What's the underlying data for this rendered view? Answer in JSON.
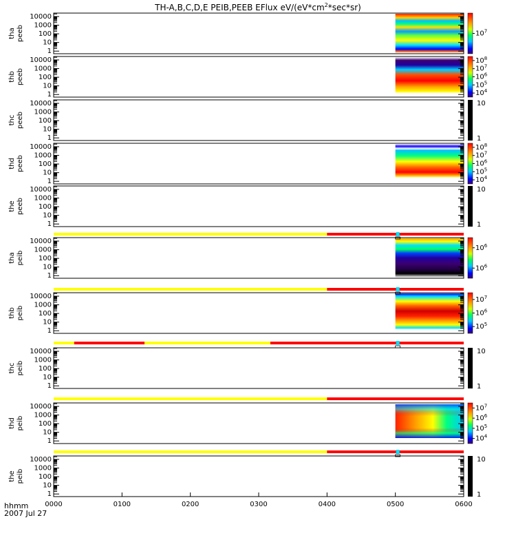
{
  "title_main": "TH-A,B,C,D,E PEIB,PEEB EFlux eV/(eV*cm",
  "title_sup": "2",
  "title_tail": "*sec*sr)",
  "time_label": "hhmm",
  "date_label": "2007 Jul 27",
  "chart_data": {
    "type": "heatmap",
    "x_ticks": [
      "0000",
      "0100",
      "0200",
      "0300",
      "0400",
      "0500",
      "0600"
    ],
    "xlim_hours": [
      0,
      6
    ],
    "data_start_hour": 5.0,
    "y_scale": "log",
    "ylim": [
      0.5,
      25000
    ],
    "panels": [
      {
        "probe": "thа",
        "quantity": "peeb",
        "has_data": true,
        "y_ticks": [
          "10000",
          "1000",
          "100",
          "10",
          "1"
        ],
        "cb_ticks": [
          "10",
          "7"
        ],
        "colormap_kind": "bands",
        "cb_exp_pos": [
          0.5
        ]
      },
      {
        "probe": "thb",
        "quantity": "peeb",
        "has_data": true,
        "y_ticks": [
          "10000",
          "1000",
          "100",
          "10",
          "1"
        ],
        "cb_ticks": [
          [
            "10",
            "8"
          ],
          [
            "10",
            "7"
          ],
          [
            "10",
            "6"
          ],
          [
            "10",
            "5"
          ],
          [
            "10",
            "4"
          ]
        ],
        "colormap_kind": "redcore"
      },
      {
        "probe": "thc",
        "quantity": "peeb",
        "has_data": false,
        "y_ticks": [
          "10000",
          "1000",
          "100",
          "10",
          "1"
        ],
        "cb_plain": [
          "10",
          "1"
        ]
      },
      {
        "probe": "thd",
        "quantity": "peeb",
        "has_data": true,
        "y_ticks": [
          "10000",
          "1000",
          "100",
          "10",
          "1"
        ],
        "cb_ticks": [
          [
            "10",
            "8"
          ],
          [
            "10",
            "7"
          ],
          [
            "10",
            "6"
          ],
          [
            "10",
            "5"
          ],
          [
            "10",
            "4"
          ]
        ],
        "colormap_kind": "redlow"
      },
      {
        "probe": "the",
        "quantity": "peeb",
        "has_data": false,
        "y_ticks": [
          "10000",
          "1000",
          "100",
          "10",
          "1"
        ],
        "cb_plain": [
          "10",
          "1"
        ]
      },
      {
        "probe": "tha",
        "quantity": "peib",
        "has_data": true,
        "y_ticks": [
          "10000",
          "1000",
          "100",
          "10",
          "1"
        ],
        "cb_ticks": [
          [
            "10",
            "6"
          ],
          [
            "10",
            "6"
          ]
        ],
        "colormap_kind": "bluebands"
      },
      {
        "probe": "thb",
        "quantity": "peib",
        "has_data": true,
        "y_ticks": [
          "10000",
          "1000",
          "100",
          "10",
          "1"
        ],
        "cb_ticks": [
          [
            "10",
            "7"
          ],
          [
            "10",
            "6"
          ],
          [
            "10",
            "5"
          ]
        ],
        "colormap_kind": "redcenter"
      },
      {
        "probe": "thc",
        "quantity": "peib",
        "has_data": false,
        "y_ticks": [
          "10000",
          "1000",
          "100",
          "10",
          "1"
        ],
        "cb_plain": [
          "10",
          "1"
        ]
      },
      {
        "probe": "thd",
        "quantity": "peib",
        "has_data": true,
        "y_ticks": [
          "10000",
          "1000",
          "100",
          "10",
          "1"
        ],
        "cb_ticks": [
          [
            "10",
            "7"
          ],
          [
            "10",
            "6"
          ],
          [
            "10",
            "5"
          ],
          [
            "10",
            "4"
          ]
        ],
        "colormap_kind": "redleft"
      },
      {
        "probe": "the",
        "quantity": "peib",
        "has_data": false,
        "y_ticks": [
          "10000",
          "1000",
          "100",
          "10",
          "1"
        ],
        "cb_plain": [
          "10",
          "1"
        ]
      }
    ],
    "mode_bars": [
      {
        "segments": [
          {
            "from": 0,
            "to": 4.0,
            "color": "#ffff00"
          },
          {
            "from": 4.0,
            "to": 6.0,
            "color": "#ff0000"
          }
        ],
        "marker_hour": 5.03
      },
      {
        "segments": [
          {
            "from": 0,
            "to": 4.0,
            "color": "#ffff00"
          },
          {
            "from": 4.0,
            "to": 6.0,
            "color": "#ff0000"
          }
        ],
        "marker_hour": 5.03
      },
      {
        "segments": [
          {
            "from": 0,
            "to": 0.3,
            "color": "#ffff00"
          },
          {
            "from": 0.3,
            "to": 1.33,
            "color": "#ff0000"
          },
          {
            "from": 1.33,
            "to": 3.17,
            "color": "#ffff00"
          },
          {
            "from": 3.17,
            "to": 6.0,
            "color": "#ff0000"
          }
        ],
        "marker_hour": 5.03
      },
      {
        "segments": [
          {
            "from": 0,
            "to": 4.0,
            "color": "#ffff00"
          },
          {
            "from": 4.0,
            "to": 6.0,
            "color": "#ff0000"
          }
        ],
        "marker_hour": null
      },
      {
        "segments": [
          {
            "from": 0,
            "to": 4.0,
            "color": "#ffff00"
          },
          {
            "from": 4.0,
            "to": 6.0,
            "color": "#ff0000"
          }
        ],
        "marker_hour": 5.03
      }
    ]
  }
}
